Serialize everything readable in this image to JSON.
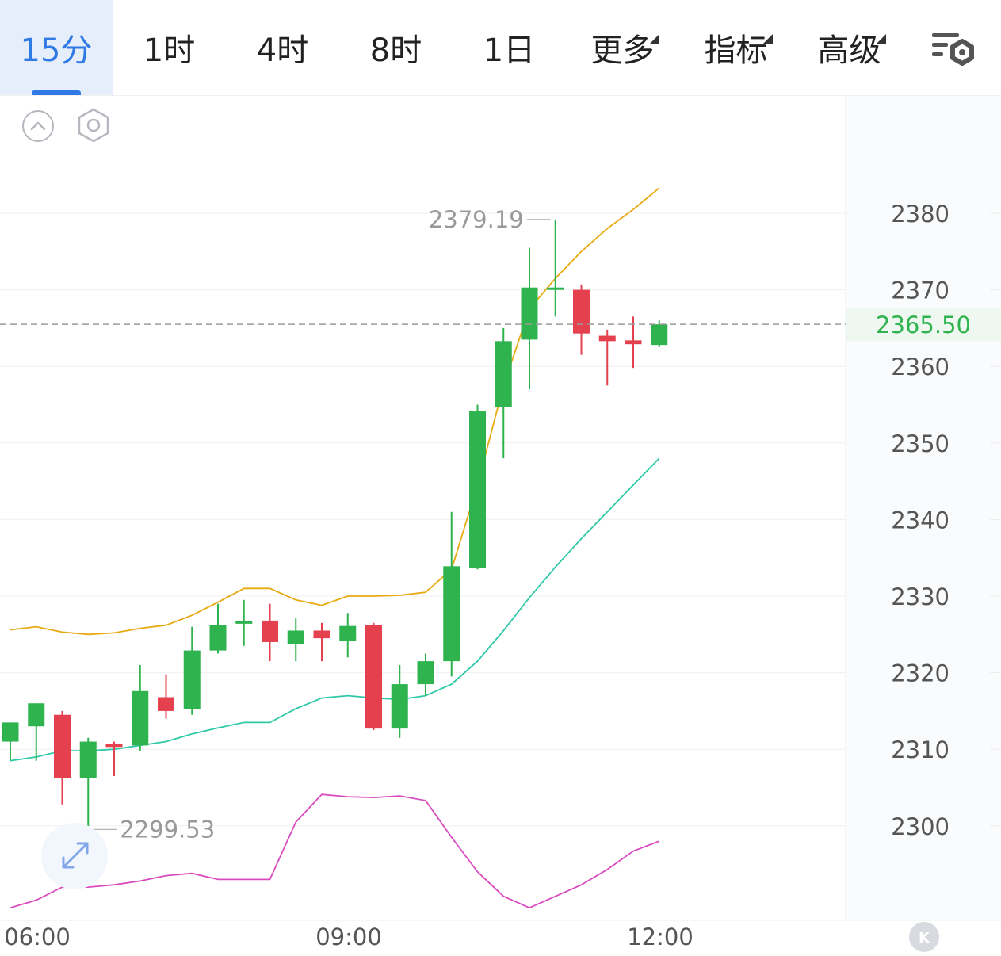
{
  "tabs": [
    {
      "label": "15分",
      "active": true,
      "dropdown": false
    },
    {
      "label": "1时",
      "active": false,
      "dropdown": false
    },
    {
      "label": "4时",
      "active": false,
      "dropdown": false
    },
    {
      "label": "8时",
      "active": false,
      "dropdown": false
    },
    {
      "label": "1日",
      "active": false,
      "dropdown": false
    },
    {
      "label": "更多",
      "active": false,
      "dropdown": true
    },
    {
      "label": "指标",
      "active": false,
      "dropdown": true
    },
    {
      "label": "高级",
      "active": false,
      "dropdown": true
    }
  ],
  "icons": {
    "settings": "chart-settings-icon",
    "collapse": "chevron-up-circle-icon",
    "indicator_settings": "hexagon-gear-icon",
    "fullscreen": "expand-arrows-icon",
    "kline": "k-circle-icon"
  },
  "colors": {
    "accent": "#2f7ae5",
    "up": "#2fb34f",
    "down": "#e4404e",
    "boll_upper": "#e8a911",
    "boll_mid": "#2ec9a8",
    "boll_lower": "#d94cc0",
    "price_label": "#2fb34f"
  },
  "chart_data": {
    "type": "candlestick",
    "interval": "15分",
    "x_tick_labels": [
      "06:00",
      "09:00",
      "12:00"
    ],
    "y_tick_labels": [
      "2380",
      "2370",
      "2360",
      "2350",
      "2340",
      "2330",
      "2320",
      "2310",
      "2300"
    ],
    "ylim": [
      2287.5,
      2392.5
    ],
    "current_price": "2365.50",
    "high_marker": "2379.19",
    "low_marker": "2299.53",
    "candles": [
      {
        "o": 2311.0,
        "h": 2313.0,
        "l": 2308.5,
        "c": 2313.5
      },
      {
        "o": 2313.0,
        "h": 2316.0,
        "l": 2308.5,
        "c": 2316.0
      },
      {
        "o": 2314.5,
        "h": 2315.0,
        "l": 2302.8,
        "c": 2306.2
      },
      {
        "o": 2306.2,
        "h": 2311.5,
        "l": 2299.53,
        "c": 2311.0
      },
      {
        "o": 2310.7,
        "h": 2311.0,
        "l": 2306.5,
        "c": 2310.3
      },
      {
        "o": 2310.5,
        "h": 2321.0,
        "l": 2309.8,
        "c": 2317.6
      },
      {
        "o": 2316.8,
        "h": 2319.8,
        "l": 2314.0,
        "c": 2315.0
      },
      {
        "o": 2315.2,
        "h": 2326.0,
        "l": 2314.5,
        "c": 2322.9
      },
      {
        "o": 2322.9,
        "h": 2329.0,
        "l": 2322.5,
        "c": 2326.2
      },
      {
        "o": 2326.5,
        "h": 2329.5,
        "l": 2323.5,
        "c": 2326.7
      },
      {
        "o": 2326.8,
        "h": 2329.0,
        "l": 2321.5,
        "c": 2324.0
      },
      {
        "o": 2323.7,
        "h": 2327.2,
        "l": 2321.5,
        "c": 2325.5
      },
      {
        "o": 2325.5,
        "h": 2326.5,
        "l": 2321.5,
        "c": 2324.5
      },
      {
        "o": 2324.2,
        "h": 2327.8,
        "l": 2322.0,
        "c": 2326.1
      },
      {
        "o": 2326.2,
        "h": 2326.5,
        "l": 2312.5,
        "c": 2312.7
      },
      {
        "o": 2312.7,
        "h": 2321.0,
        "l": 2311.5,
        "c": 2318.5
      },
      {
        "o": 2318.5,
        "h": 2322.5,
        "l": 2317.0,
        "c": 2321.5
      },
      {
        "o": 2321.5,
        "h": 2341.0,
        "l": 2319.5,
        "c": 2333.9
      },
      {
        "o": 2333.7,
        "h": 2355.0,
        "l": 2333.5,
        "c": 2354.2
      },
      {
        "o": 2354.7,
        "h": 2365.0,
        "l": 2348.0,
        "c": 2363.3
      },
      {
        "o": 2363.5,
        "h": 2375.5,
        "l": 2357.0,
        "c": 2370.3
      },
      {
        "o": 2370.0,
        "h": 2379.19,
        "l": 2366.5,
        "c": 2370.3
      },
      {
        "o": 2370.0,
        "h": 2370.7,
        "l": 2361.5,
        "c": 2364.3
      },
      {
        "o": 2364.0,
        "h": 2364.8,
        "l": 2357.5,
        "c": 2363.3
      },
      {
        "o": 2363.4,
        "h": 2366.5,
        "l": 2359.8,
        "c": 2362.9
      },
      {
        "o": 2362.8,
        "h": 2366.0,
        "l": 2362.5,
        "c": 2365.5
      }
    ],
    "bollinger": {
      "upper": [
        2325.6,
        2326.0,
        2325.3,
        2325.0,
        2325.2,
        2325.8,
        2326.2,
        2327.5,
        2329.2,
        2331.0,
        2331.0,
        2329.5,
        2328.8,
        2330.0,
        2330.0,
        2330.1,
        2330.5,
        2333.5,
        2344.5,
        2357.5,
        2367.5,
        2371.5,
        2375.0,
        2378.0,
        2380.5,
        2383.3
      ],
      "mid": [
        2308.5,
        2309.0,
        2309.8,
        2309.8,
        2310.0,
        2310.5,
        2311.0,
        2312.0,
        2312.8,
        2313.5,
        2313.5,
        2315.3,
        2316.7,
        2317.0,
        2316.7,
        2316.5,
        2317.0,
        2318.5,
        2321.5,
        2325.5,
        2329.8,
        2333.8,
        2337.5,
        2341.0,
        2344.5,
        2348.0
      ],
      "lower": [
        2289.3,
        2290.3,
        2292.0,
        2292.0,
        2292.3,
        2292.8,
        2293.5,
        2293.8,
        2293.0,
        2293.0,
        2293.0,
        2300.5,
        2304.1,
        2303.8,
        2303.7,
        2303.9,
        2303.3,
        2298.5,
        2294.0,
        2290.8,
        2289.3,
        2290.8,
        2292.3,
        2294.3,
        2296.7,
        2298.0
      ]
    }
  }
}
